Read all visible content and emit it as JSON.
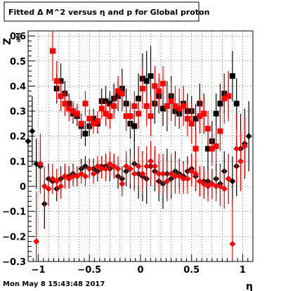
{
  "chart_data": {
    "type": "scatter",
    "title": "Fitted Δ M^2 versus η and p for Global proton",
    "xlabel": "η",
    "ylabel": "Z",
    "ylabel_sub": "dM",
    "xlim": [
      -1.1,
      1.1
    ],
    "ylim": [
      -0.3,
      0.62
    ],
    "xticks": [
      "−1",
      "−0.5",
      "0",
      "0.5",
      "1"
    ],
    "xtick_values": [
      -1,
      -0.5,
      0,
      0.5,
      1
    ],
    "yticks": [
      "−0.3",
      "−0.2",
      "−0.1",
      "0",
      "0.1",
      "0.2",
      "0.3",
      "0.4",
      "0.5",
      "0.6"
    ],
    "ytick_values": [
      -0.3,
      -0.2,
      -0.1,
      0,
      0.1,
      0.2,
      0.3,
      0.4,
      0.5,
      0.6
    ],
    "grid": true,
    "series": [
      {
        "color": "#000000",
        "marker": "square",
        "points": [
          [
            -0.82,
            0.39,
            0.06
          ],
          [
            -0.78,
            0.42,
            0.07
          ],
          [
            -0.74,
            0.37,
            0.05
          ],
          [
            -0.7,
            0.33,
            0.04
          ],
          [
            -0.66,
            0.29,
            0.04
          ],
          [
            -0.62,
            0.28,
            0.04
          ],
          [
            -0.58,
            0.24,
            0.05
          ],
          [
            -0.54,
            0.21,
            0.05
          ],
          [
            -0.5,
            0.24,
            0.04
          ],
          [
            -0.46,
            0.27,
            0.04
          ],
          [
            -0.42,
            0.25,
            0.04
          ],
          [
            -0.38,
            0.34,
            0.05
          ],
          [
            -0.34,
            0.34,
            0.06
          ],
          [
            -0.3,
            0.33,
            0.05
          ],
          [
            -0.26,
            0.35,
            0.06
          ],
          [
            -0.22,
            0.36,
            0.06
          ],
          [
            -0.18,
            0.39,
            0.08
          ],
          [
            -0.14,
            0.33,
            0.06
          ],
          [
            -0.1,
            0.25,
            0.06
          ],
          [
            -0.06,
            0.24,
            0.06
          ],
          [
            -0.02,
            0.35,
            0.1
          ],
          [
            0.02,
            0.43,
            0.1
          ],
          [
            0.06,
            0.42,
            0.12
          ],
          [
            0.1,
            0.44,
            0.12
          ],
          [
            0.14,
            0.33,
            0.08
          ],
          [
            0.18,
            0.36,
            0.07
          ],
          [
            0.22,
            0.31,
            0.07
          ],
          [
            0.26,
            0.32,
            0.1
          ],
          [
            0.3,
            0.36,
            0.08
          ],
          [
            0.34,
            0.3,
            0.06
          ],
          [
            0.38,
            0.29,
            0.06
          ],
          [
            0.42,
            0.33,
            0.07
          ],
          [
            0.46,
            0.3,
            0.07
          ],
          [
            0.5,
            0.3,
            0.06
          ],
          [
            0.54,
            0.27,
            0.06
          ],
          [
            0.58,
            0.33,
            0.08
          ],
          [
            0.62,
            0.29,
            0.08
          ],
          [
            0.66,
            0.15,
            0.08
          ],
          [
            0.7,
            0.18,
            0.08
          ],
          [
            0.74,
            0.29,
            0.08
          ],
          [
            0.78,
            0.33,
            0.08
          ],
          [
            0.82,
            0.37,
            0.08
          ],
          [
            0.86,
            0.36,
            0.09
          ],
          [
            0.9,
            0.44,
            0.1
          ],
          [
            0.94,
            0.33,
            0.1
          ]
        ]
      },
      {
        "color": "#ff0000",
        "marker": "square",
        "points": [
          [
            -0.86,
            0.54,
            0.12
          ],
          [
            -0.82,
            0.42,
            0.08
          ],
          [
            -0.78,
            0.36,
            0.06
          ],
          [
            -0.74,
            0.33,
            0.05
          ],
          [
            -0.7,
            0.31,
            0.05
          ],
          [
            -0.66,
            0.3,
            0.04
          ],
          [
            -0.62,
            0.29,
            0.04
          ],
          [
            -0.58,
            0.25,
            0.04
          ],
          [
            -0.54,
            0.33,
            0.05
          ],
          [
            -0.5,
            0.27,
            0.04
          ],
          [
            -0.46,
            0.25,
            0.04
          ],
          [
            -0.42,
            0.26,
            0.04
          ],
          [
            -0.38,
            0.31,
            0.04
          ],
          [
            -0.34,
            0.29,
            0.05
          ],
          [
            -0.3,
            0.28,
            0.05
          ],
          [
            -0.26,
            0.32,
            0.05
          ],
          [
            -0.22,
            0.38,
            0.06
          ],
          [
            -0.18,
            0.37,
            0.07
          ],
          [
            -0.14,
            0.28,
            0.06
          ],
          [
            -0.1,
            0.28,
            0.06
          ],
          [
            -0.06,
            0.32,
            0.06
          ],
          [
            -0.02,
            0.29,
            0.06
          ],
          [
            0.02,
            0.39,
            0.08
          ],
          [
            0.06,
            0.32,
            0.08
          ],
          [
            0.1,
            0.28,
            0.08
          ],
          [
            0.14,
            0.4,
            0.08
          ],
          [
            0.18,
            0.38,
            0.07
          ],
          [
            0.22,
            0.41,
            0.07
          ],
          [
            0.26,
            0.32,
            0.08
          ],
          [
            0.3,
            0.34,
            0.08
          ],
          [
            0.34,
            0.32,
            0.08
          ],
          [
            0.38,
            0.31,
            0.08
          ],
          [
            0.42,
            0.32,
            0.08
          ],
          [
            0.46,
            0.27,
            0.07
          ],
          [
            0.5,
            0.25,
            0.08
          ],
          [
            0.54,
            0.15,
            0.07
          ],
          [
            0.58,
            0.28,
            0.07
          ],
          [
            0.62,
            0.29,
            0.07
          ],
          [
            0.66,
            0.23,
            0.07
          ],
          [
            0.7,
            0.15,
            0.07
          ],
          [
            0.74,
            0.16,
            0.08
          ],
          [
            0.78,
            0.22,
            0.08
          ],
          [
            0.82,
            0.35,
            0.1
          ],
          [
            0.86,
            0.36,
            0.1
          ]
        ]
      },
      {
        "color": "#000000",
        "marker": "diamond",
        "points": [
          [
            -1.1,
            0.18,
            0.16
          ],
          [
            -1.06,
            0.22,
            0.14
          ],
          [
            -1.02,
            0.09,
            0.1
          ],
          [
            -0.98,
            0.08,
            0.1
          ],
          [
            -0.94,
            -0.07,
            0.1
          ],
          [
            -0.9,
            0.03,
            0.06
          ],
          [
            -0.86,
            0.02,
            0.05
          ],
          [
            -0.82,
            -0.01,
            0.05
          ],
          [
            -0.78,
            0.03,
            0.05
          ],
          [
            -0.74,
            0.04,
            0.04
          ],
          [
            -0.7,
            0.04,
            0.04
          ],
          [
            -0.66,
            0.05,
            0.04
          ],
          [
            -0.62,
            0.04,
            0.04
          ],
          [
            -0.58,
            0.07,
            0.04
          ],
          [
            -0.54,
            0.08,
            0.04
          ],
          [
            -0.5,
            0.07,
            0.04
          ],
          [
            -0.46,
            0.07,
            0.04
          ],
          [
            -0.42,
            0.06,
            0.04
          ],
          [
            -0.38,
            0.08,
            0.04
          ],
          [
            -0.34,
            0.08,
            0.05
          ],
          [
            -0.3,
            0.07,
            0.05
          ],
          [
            -0.26,
            0.08,
            0.05
          ],
          [
            -0.22,
            0.04,
            0.05
          ],
          [
            -0.18,
            0.03,
            0.05
          ],
          [
            -0.14,
            0.06,
            0.06
          ],
          [
            -0.1,
            0.07,
            0.08
          ],
          [
            -0.06,
            0.09,
            0.1
          ],
          [
            -0.02,
            0.05,
            0.1
          ],
          [
            0.02,
            0.04,
            0.1
          ],
          [
            0.06,
            0.03,
            0.1
          ],
          [
            0.1,
            0.08,
            0.08
          ],
          [
            0.14,
            0.06,
            0.08
          ],
          [
            0.18,
            0.02,
            0.08
          ],
          [
            0.22,
            0.01,
            0.1
          ],
          [
            0.26,
            0.05,
            0.1
          ],
          [
            0.3,
            0.03,
            0.08
          ],
          [
            0.34,
            0.06,
            0.08
          ],
          [
            0.38,
            0.05,
            0.06
          ],
          [
            0.42,
            0.04,
            0.06
          ],
          [
            0.46,
            0.06,
            0.06
          ],
          [
            0.5,
            0.07,
            0.06
          ],
          [
            0.54,
            0.04,
            0.06
          ],
          [
            0.58,
            0.02,
            0.06
          ],
          [
            0.62,
            0.02,
            0.06
          ],
          [
            0.66,
            0.02,
            0.06
          ],
          [
            0.7,
            0.01,
            0.06
          ],
          [
            0.74,
            0.03,
            0.06
          ],
          [
            0.78,
            0.01,
            0.08
          ],
          [
            0.82,
            0.06,
            0.08
          ],
          [
            0.86,
            0.03,
            0.1
          ],
          [
            0.9,
            0.02,
            0.1
          ],
          [
            0.94,
            0.08,
            0.12
          ],
          [
            0.98,
            0.15,
            0.14
          ],
          [
            1.02,
            0.17,
            0.14
          ],
          [
            1.06,
            0.2,
            0.14
          ]
        ]
      },
      {
        "color": "#ff0000",
        "marker": "diamond",
        "points": [
          [
            -1.02,
            -0.22,
            0.2
          ],
          [
            -0.98,
            0.09,
            0.12
          ],
          [
            -0.94,
            0.0,
            0.08
          ],
          [
            -0.9,
            -0.01,
            0.07
          ],
          [
            -0.86,
            0.03,
            0.06
          ],
          [
            -0.82,
            0.02,
            0.05
          ],
          [
            -0.78,
            0.0,
            0.05
          ],
          [
            -0.74,
            0.04,
            0.05
          ],
          [
            -0.7,
            0.03,
            0.04
          ],
          [
            -0.66,
            0.04,
            0.04
          ],
          [
            -0.62,
            0.04,
            0.04
          ],
          [
            -0.58,
            0.05,
            0.04
          ],
          [
            -0.54,
            0.04,
            0.04
          ],
          [
            -0.5,
            0.07,
            0.04
          ],
          [
            -0.46,
            0.05,
            0.04
          ],
          [
            -0.42,
            0.08,
            0.04
          ],
          [
            -0.38,
            0.07,
            0.04
          ],
          [
            -0.34,
            0.07,
            0.05
          ],
          [
            -0.3,
            0.09,
            0.05
          ],
          [
            -0.26,
            0.08,
            0.05
          ],
          [
            -0.22,
            0.07,
            0.05
          ],
          [
            -0.18,
            0.01,
            0.05
          ],
          [
            -0.14,
            0.08,
            0.06
          ],
          [
            -0.1,
            0.07,
            0.06
          ],
          [
            -0.06,
            0.05,
            0.07
          ],
          [
            -0.02,
            0.08,
            0.08
          ],
          [
            0.02,
            0.05,
            0.08
          ],
          [
            0.06,
            0.08,
            0.08
          ],
          [
            0.1,
            0.1,
            0.08
          ],
          [
            0.14,
            0.08,
            0.08
          ],
          [
            0.18,
            0.05,
            0.08
          ],
          [
            0.22,
            0.05,
            0.08
          ],
          [
            0.26,
            0.02,
            0.08
          ],
          [
            0.3,
            0.05,
            0.08
          ],
          [
            0.34,
            0.04,
            0.07
          ],
          [
            0.38,
            0.04,
            0.07
          ],
          [
            0.42,
            0.03,
            0.06
          ],
          [
            0.46,
            0.03,
            0.06
          ],
          [
            0.5,
            0.06,
            0.06
          ],
          [
            0.54,
            0.05,
            0.06
          ],
          [
            0.58,
            0.02,
            0.06
          ],
          [
            0.62,
            0.01,
            0.06
          ],
          [
            0.66,
            0.0,
            0.06
          ],
          [
            0.7,
            0.01,
            0.06
          ],
          [
            0.74,
            0.0,
            0.06
          ],
          [
            0.78,
            0.0,
            0.08
          ],
          [
            0.82,
            -0.01,
            0.08
          ],
          [
            0.86,
            0.03,
            0.1
          ],
          [
            0.9,
            -0.23,
            0.18
          ],
          [
            0.94,
            0.15,
            0.14
          ],
          [
            0.98,
            0.1,
            0.12
          ],
          [
            1.02,
            0.16,
            0.12
          ]
        ]
      }
    ]
  },
  "footer": {
    "timestamp": "Mon May  8 15:43:48 2017"
  }
}
